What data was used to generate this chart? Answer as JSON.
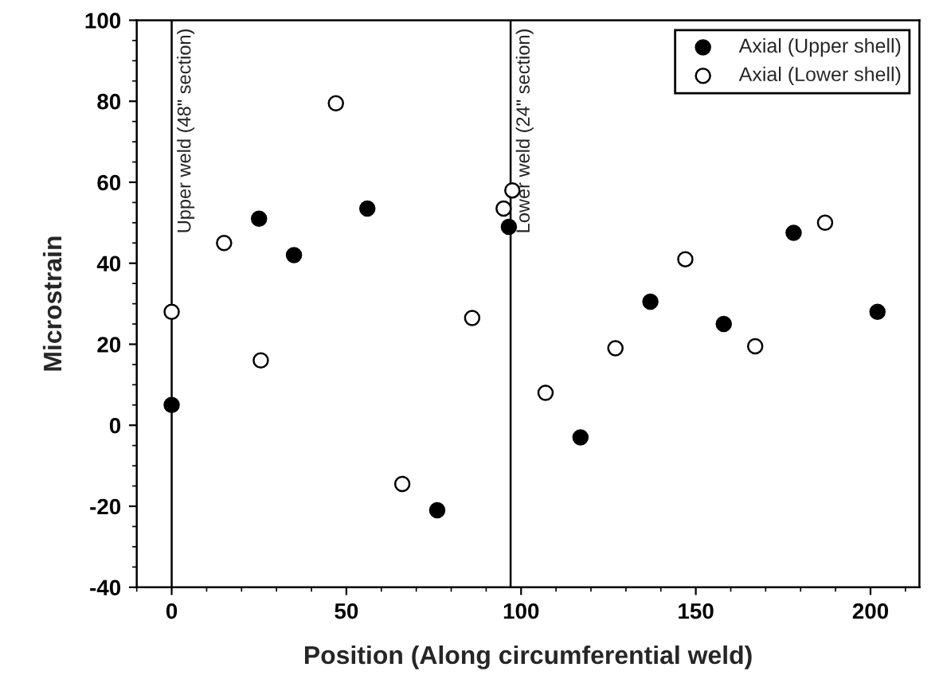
{
  "chart_data": {
    "type": "scatter",
    "xlabel": "Position (Along circumferential weld)",
    "ylabel": "Microstrain",
    "xlim": [
      -10,
      214
    ],
    "ylim": [
      -40,
      100
    ],
    "xticks": [
      0,
      50,
      100,
      150,
      200
    ],
    "yticks": [
      -40,
      -20,
      0,
      20,
      40,
      60,
      80,
      100
    ],
    "marker": "circle",
    "legend": "top right",
    "grid": false,
    "ref_lines": [
      {
        "axis": "x",
        "value": 0,
        "label": "Upper weld (48\" section)",
        "color": "#000000"
      },
      {
        "axis": "x",
        "value": 97,
        "label": "Lower weld (24\" section)",
        "color": "#000000"
      }
    ],
    "series": [
      {
        "name": "Axial (Upper shell)",
        "color": "#000000",
        "x": [
          0,
          25,
          35,
          56,
          76,
          96.5,
          117,
          137,
          158,
          178,
          202
        ],
        "values": [
          5,
          51,
          42,
          53.5,
          -21,
          49,
          -3,
          30.5,
          25,
          47.5,
          28
        ]
      },
      {
        "name": "Axial (Lower shell)",
        "color": "#ffffff",
        "x": [
          0,
          15,
          25.5,
          47,
          66,
          86,
          95,
          97.5,
          107,
          127,
          147,
          167,
          187
        ],
        "values": [
          28,
          45,
          16,
          79.5,
          -14.5,
          26.5,
          53.5,
          58,
          8,
          19,
          41,
          19.5,
          50
        ]
      }
    ]
  }
}
